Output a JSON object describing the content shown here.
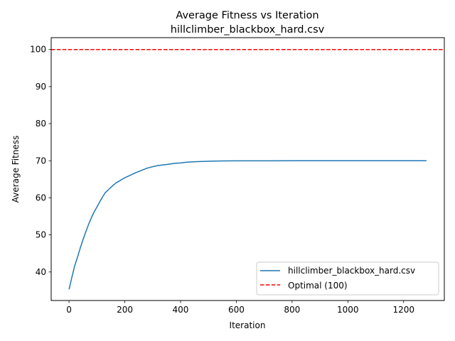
{
  "chart_data": {
    "type": "line",
    "title": "Average Fitness vs Iteration",
    "subtitle": "hillclimber_blackbox_hard.csv",
    "xlabel": "Iteration",
    "ylabel": "Average Fitness",
    "xlim": [
      -64,
      1346
    ],
    "ylim": [
      32.3,
      103.2
    ],
    "xticks": [
      0,
      200,
      400,
      600,
      800,
      1000,
      1200
    ],
    "yticks": [
      40,
      50,
      60,
      70,
      80,
      90,
      100
    ],
    "grid": false,
    "legend_position": "lower-right",
    "series": [
      {
        "name": "hillclimber_blackbox_hard.csv",
        "color": "#1f77b4",
        "style": "solid",
        "x": [
          0,
          10,
          20,
          30,
          40,
          50,
          60,
          70,
          80,
          90,
          100,
          110,
          120,
          130,
          140,
          150,
          160,
          170,
          180,
          190,
          200,
          220,
          240,
          260,
          280,
          300,
          320,
          340,
          360,
          380,
          400,
          420,
          440,
          460,
          480,
          500,
          520,
          540,
          560,
          600,
          700,
          800,
          900,
          1000,
          1100,
          1200,
          1282
        ],
        "y": [
          35.3,
          38.5,
          41.6,
          43.9,
          46.4,
          48.7,
          50.8,
          52.8,
          54.6,
          56.2,
          57.5,
          58.9,
          60.2,
          61.4,
          62.1,
          62.8,
          63.5,
          64.1,
          64.5,
          65.0,
          65.4,
          66.1,
          66.8,
          67.4,
          68.0,
          68.4,
          68.7,
          68.9,
          69.1,
          69.3,
          69.4,
          69.6,
          69.7,
          69.75,
          69.8,
          69.85,
          69.9,
          69.92,
          69.95,
          69.97,
          69.98,
          69.99,
          70.0,
          70.0,
          70.0,
          70.0,
          70.0
        ]
      },
      {
        "name": "Optimal (100)",
        "color": "#ff0000",
        "style": "dashed",
        "y_constant": 100
      }
    ]
  }
}
